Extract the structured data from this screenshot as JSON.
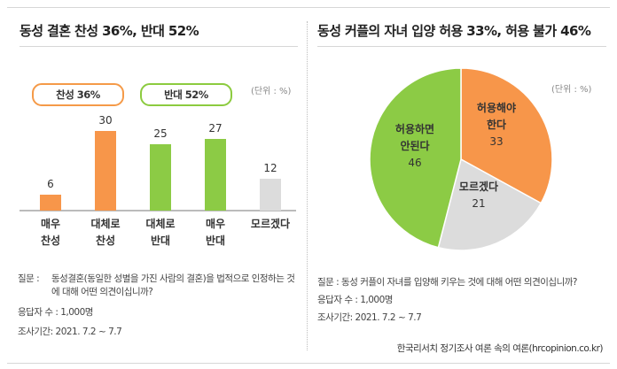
{
  "left": {
    "title": "동성 결혼 찬성 36%, 반대 52%",
    "unit": "(단위 : %)",
    "legend": {
      "agree": "찬성 36%",
      "disagree": "반대 52%"
    },
    "question_label": "질문 :",
    "question": "동성결혼(동일한 성별을 가진 사람의 결혼)을 법적으로 인정하는 것에 대해 어떤 의견이십니까?",
    "respondents": "응답자 수 : 1,000명",
    "period": "조사기간: 2021. 7.2 ~ 7.7"
  },
  "right": {
    "title": "동성 커플의 자녀 입양 허용 33%, 허용 불가 46%",
    "unit": "(단위 : %)",
    "question": "질문 :  동성 커플이 자녀를 입양해 키우는 것에 대해 어떤 의견이십니까?",
    "respondents": "응답자 수 : 1,000명",
    "period": "조사기간: 2021. 7.2 ~ 7.7",
    "credit": "한국리서치 정기조사 여론 속의 여론(hrcopinion.co.kr)"
  },
  "colors": {
    "orange": "#f7964a",
    "green": "#8ccb45",
    "gray": "#dcdcdc"
  },
  "chart_data": [
    {
      "type": "bar",
      "title": "동성 결혼 찬성 36%, 반대 52%",
      "categories": [
        [
          "매우",
          "찬성"
        ],
        [
          "대체로",
          "찬성"
        ],
        [
          "대체로",
          "반대"
        ],
        [
          "매우",
          "반대"
        ],
        [
          "모르겠다"
        ]
      ],
      "values": [
        6,
        30,
        25,
        27,
        12
      ],
      "value_labels": [
        "6",
        "30",
        "25",
        "27",
        "12"
      ],
      "colors": [
        "#f7964a",
        "#f7964a",
        "#8ccb45",
        "#8ccb45",
        "#dcdcdc"
      ],
      "ylim": [
        0,
        30
      ],
      "unit": "%"
    },
    {
      "type": "pie",
      "title": "동성 커플의 자녀 입양 허용 33%, 허용 불가 46%",
      "slices": [
        {
          "label": [
            "허용해야",
            "한다"
          ],
          "value": 33,
          "value_label": "33",
          "color": "#f7964a"
        },
        {
          "label": [
            "모르겠다"
          ],
          "value": 21,
          "value_label": "21",
          "color": "#dcdcdc"
        },
        {
          "label": [
            "허용하면",
            "안된다"
          ],
          "value": 46,
          "value_label": "46",
          "color": "#8ccb45"
        }
      ],
      "start": "12 o'clock",
      "direction": "clockwise",
      "unit": "%"
    }
  ]
}
